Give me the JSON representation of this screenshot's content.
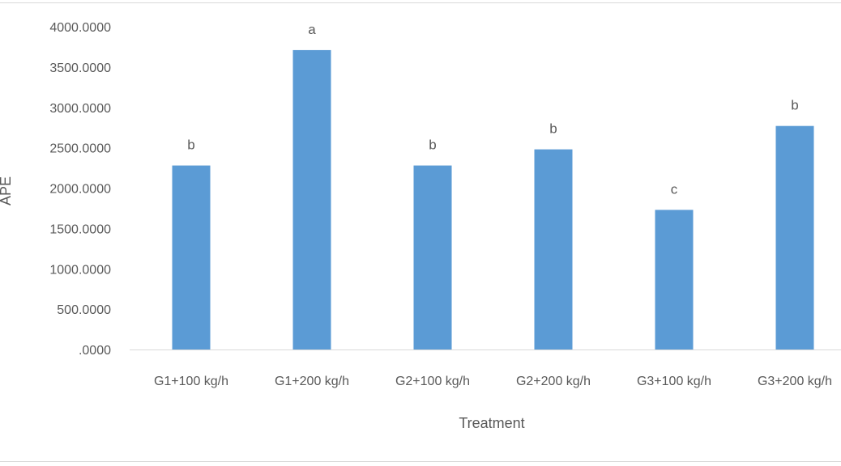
{
  "chart_data": {
    "type": "bar",
    "title": "",
    "xlabel": "Treatment",
    "ylabel": "APE",
    "categories": [
      "G1+100 kg/h",
      "G1+200 kg/h",
      "G2+100 kg/h",
      "G2+200 kg/h",
      "G3+100 kg/h",
      "G3+200 kg/h"
    ],
    "values": [
      2280,
      3710,
      2280,
      2480,
      1730,
      2770
    ],
    "significance_labels": [
      "b",
      "a",
      "b",
      "b",
      "c",
      "b"
    ],
    "yticks": [
      "4000.0000",
      "3500.0000",
      "3000.0000",
      "2500.0000",
      "2000.0000",
      "1500.0000",
      "1000.0000",
      "500.0000",
      ".0000"
    ],
    "ylim": [
      0,
      4000
    ],
    "grid": false,
    "legend": "none",
    "bar_color": "#5B9BD5"
  }
}
